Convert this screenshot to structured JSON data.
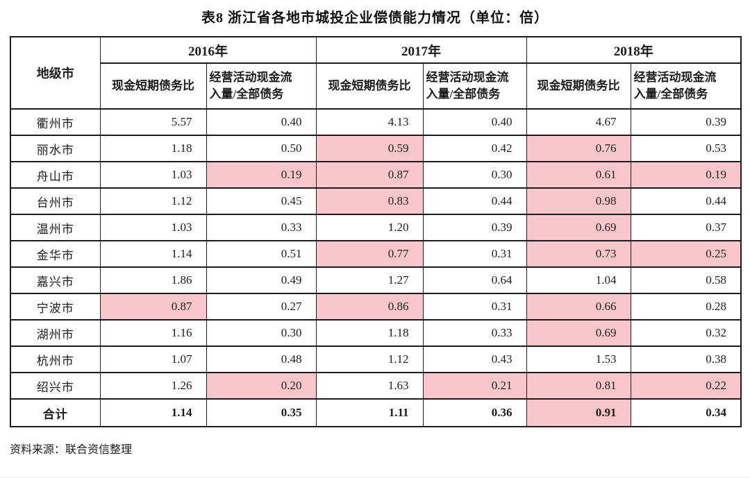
{
  "page": {
    "title": "表8  浙江省各地市城投企业偿债能力情况（单位：倍）",
    "source": "资料来源：联合资信整理"
  },
  "colors": {
    "highlight_bg": "#f8c6cc",
    "highlight_text": "#a53540",
    "border": "#1b1b1b"
  },
  "table": {
    "corner_label": "地级市",
    "year_groups": [
      {
        "year": "2016年",
        "sub_columns": [
          "现金短期债务比",
          "经营活动现金流\n入量/全部债务"
        ]
      },
      {
        "year": "2017年",
        "sub_columns": [
          "现金短期债务比",
          "经营活动现金流\n入量/全部债务"
        ]
      },
      {
        "year": "2018年",
        "sub_columns": [
          "现金短期债务比",
          "经营活动现金流\n入量/全部债务"
        ]
      }
    ],
    "rows": [
      {
        "city": "衢州市",
        "values": [
          "5.57",
          "0.40",
          "4.13",
          "0.40",
          "4.67",
          "0.39"
        ],
        "highlight": [
          false,
          false,
          false,
          false,
          false,
          false
        ],
        "is_total": false
      },
      {
        "city": "丽水市",
        "values": [
          "1.18",
          "0.50",
          "0.59",
          "0.42",
          "0.76",
          "0.53"
        ],
        "highlight": [
          false,
          false,
          true,
          false,
          true,
          false
        ],
        "is_total": false
      },
      {
        "city": "舟山市",
        "values": [
          "1.03",
          "0.19",
          "0.87",
          "0.30",
          "0.61",
          "0.19"
        ],
        "highlight": [
          false,
          true,
          true,
          false,
          true,
          true
        ],
        "is_total": false
      },
      {
        "city": "台州市",
        "values": [
          "1.12",
          "0.45",
          "0.83",
          "0.44",
          "0.98",
          "0.44"
        ],
        "highlight": [
          false,
          false,
          true,
          false,
          true,
          false
        ],
        "is_total": false
      },
      {
        "city": "温州市",
        "values": [
          "1.03",
          "0.33",
          "1.20",
          "0.39",
          "0.69",
          "0.37"
        ],
        "highlight": [
          false,
          false,
          false,
          false,
          true,
          false
        ],
        "is_total": false
      },
      {
        "city": "金华市",
        "values": [
          "1.14",
          "0.51",
          "0.77",
          "0.31",
          "0.73",
          "0.25"
        ],
        "highlight": [
          false,
          false,
          true,
          false,
          true,
          true
        ],
        "is_total": false
      },
      {
        "city": "嘉兴市",
        "values": [
          "1.86",
          "0.49",
          "1.27",
          "0.64",
          "1.04",
          "0.58"
        ],
        "highlight": [
          false,
          false,
          false,
          false,
          false,
          false
        ],
        "is_total": false
      },
      {
        "city": "宁波市",
        "values": [
          "0.87",
          "0.27",
          "0.86",
          "0.31",
          "0.66",
          "0.28"
        ],
        "highlight": [
          true,
          false,
          true,
          false,
          true,
          false
        ],
        "is_total": false
      },
      {
        "city": "湖州市",
        "values": [
          "1.16",
          "0.30",
          "1.18",
          "0.33",
          "0.69",
          "0.32"
        ],
        "highlight": [
          false,
          false,
          false,
          false,
          true,
          false
        ],
        "is_total": false
      },
      {
        "city": "杭州市",
        "values": [
          "1.07",
          "0.48",
          "1.12",
          "0.43",
          "1.53",
          "0.38"
        ],
        "highlight": [
          false,
          false,
          false,
          false,
          false,
          false
        ],
        "is_total": false
      },
      {
        "city": "绍兴市",
        "values": [
          "1.26",
          "0.20",
          "1.63",
          "0.21",
          "0.81",
          "0.22"
        ],
        "highlight": [
          false,
          true,
          false,
          true,
          true,
          true
        ],
        "is_total": false
      },
      {
        "city": "合计",
        "values": [
          "1.14",
          "0.35",
          "1.11",
          "0.36",
          "0.91",
          "0.34"
        ],
        "highlight": [
          false,
          false,
          false,
          false,
          true,
          false
        ],
        "is_total": true
      }
    ]
  }
}
